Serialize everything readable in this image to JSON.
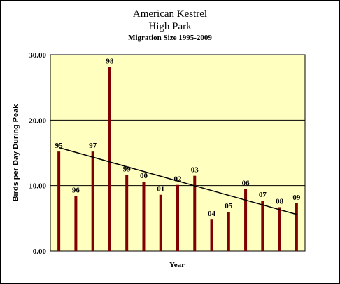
{
  "chart_data": {
    "type": "bar",
    "title": "American Kestrel",
    "title_line2": "High Park",
    "subtitle": "Migration Size 1995-2009",
    "xlabel": "Year",
    "ylabel": "Birds per Day During Peak",
    "ylim": [
      0,
      30
    ],
    "yticks": [
      "0.00",
      "10.00",
      "20.00",
      "30.00"
    ],
    "categories": [
      "95",
      "96",
      "97",
      "98",
      "99",
      "00",
      "01",
      "02",
      "03",
      "04",
      "05",
      "06",
      "07",
      "08",
      "09"
    ],
    "values": [
      15.2,
      8.4,
      15.2,
      28.1,
      11.6,
      10.6,
      8.6,
      10.1,
      11.5,
      4.8,
      6.0,
      9.5,
      7.7,
      6.7,
      7.3
    ],
    "trendline": {
      "type": "linear",
      "start": 15.8,
      "end": 5.6
    },
    "grid": true,
    "legend": "none",
    "colors": {
      "bar": "#800000",
      "plot_background": "#ffffc0",
      "trendline": "#000000",
      "gridline": "#000000"
    }
  }
}
